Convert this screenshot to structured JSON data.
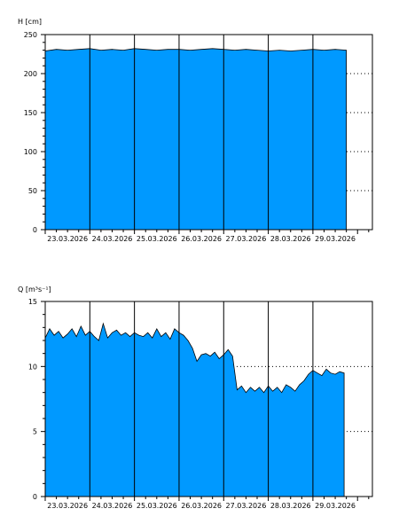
{
  "chart_data": [
    {
      "type": "area",
      "ylabel": "H [cm]",
      "ylim": [
        0,
        250
      ],
      "yticks": [
        0,
        50,
        100,
        150,
        200,
        250
      ],
      "grid": "horizontal dotted",
      "xlim": [
        "23.03.2026 00:00",
        "30.03.2026 08:00"
      ],
      "xticks": [
        "23.03.2026",
        "24.03.2026",
        "25.03.2026",
        "26.03.2026",
        "27.03.2026",
        "28.03.2026",
        "29.03.2026"
      ],
      "fill_color": "#0099ff",
      "series": [
        {
          "x_days": [
            0,
            0.25,
            0.5,
            0.75,
            1,
            1.25,
            1.5,
            1.75,
            2,
            2.25,
            2.5,
            2.75,
            3,
            3.25,
            3.5,
            3.75,
            4,
            4.25,
            4.5,
            4.75,
            5,
            5.25,
            5.5,
            5.75,
            6,
            6.25,
            6.5,
            6.75
          ],
          "y": [
            229,
            231,
            230,
            231,
            232,
            230,
            231,
            230,
            232,
            231,
            230,
            231,
            231,
            230,
            231,
            232,
            231,
            230,
            231,
            230,
            229,
            230,
            229,
            230,
            231,
            230,
            231,
            230
          ]
        }
      ]
    },
    {
      "type": "area",
      "ylabel": "Q [m³s⁻¹]",
      "ylim": [
        0,
        15
      ],
      "yticks": [
        0,
        5,
        10,
        15
      ],
      "grid": "horizontal dotted",
      "xlim": [
        "23.03.2026 00:00",
        "30.03.2026 08:00"
      ],
      "xticks": [
        "23.03.2026",
        "24.03.2026",
        "25.03.2026",
        "26.03.2026",
        "27.03.2026",
        "28.03.2026",
        "29.03.2026"
      ],
      "fill_color": "#0099ff",
      "series": [
        {
          "x_days": [
            0,
            0.1,
            0.2,
            0.3,
            0.4,
            0.5,
            0.6,
            0.7,
            0.8,
            0.9,
            1.0,
            1.1,
            1.2,
            1.3,
            1.4,
            1.5,
            1.6,
            1.7,
            1.8,
            1.9,
            2.0,
            2.1,
            2.2,
            2.3,
            2.4,
            2.5,
            2.6,
            2.7,
            2.8,
            2.9,
            3.0,
            3.1,
            3.2,
            3.3,
            3.4,
            3.5,
            3.6,
            3.7,
            3.8,
            3.9,
            4.0,
            4.1,
            4.2,
            4.3,
            4.4,
            4.5,
            4.6,
            4.7,
            4.8,
            4.9,
            5.0,
            5.1,
            5.2,
            5.3,
            5.4,
            5.5,
            5.6,
            5.7,
            5.8,
            5.9,
            6.0,
            6.1,
            6.2,
            6.3,
            6.4,
            6.5,
            6.6,
            6.7
          ],
          "y": [
            12.2,
            12.9,
            12.4,
            12.7,
            12.2,
            12.5,
            12.9,
            12.3,
            13.1,
            12.4,
            12.7,
            12.3,
            12.0,
            13.3,
            12.2,
            12.6,
            12.8,
            12.4,
            12.6,
            12.3,
            12.6,
            12.4,
            12.3,
            12.6,
            12.2,
            12.9,
            12.3,
            12.6,
            12.1,
            12.9,
            12.6,
            12.4,
            12.0,
            11.4,
            10.4,
            10.9,
            11.0,
            10.8,
            11.1,
            10.6,
            10.9,
            11.3,
            10.8,
            8.2,
            8.5,
            8.0,
            8.4,
            8.1,
            8.4,
            8.0,
            8.5,
            8.1,
            8.4,
            8.0,
            8.6,
            8.4,
            8.1,
            8.6,
            8.9,
            9.4,
            9.7,
            9.5,
            9.3,
            9.8,
            9.5,
            9.4,
            9.6,
            9.5
          ]
        }
      ]
    }
  ]
}
